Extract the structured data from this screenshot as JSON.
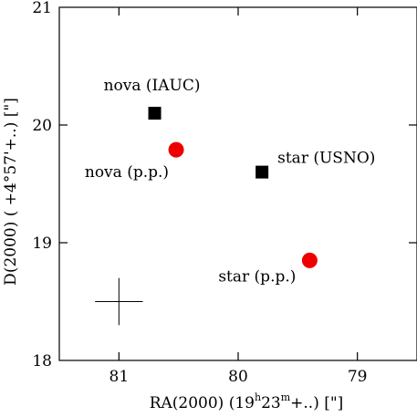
{
  "chart_data": {
    "type": "scatter",
    "xlabel": {
      "pre": "RA(2000) (19",
      "sup1": "h",
      "mid": "23",
      "sup2": "m",
      "post": "+..) [\"]"
    },
    "ylabel": "D(2000) ( +4°57'+..) [\"]",
    "xlim": [
      81.5,
      78.5
    ],
    "ylim": [
      18,
      21
    ],
    "x_reversed": true,
    "xticks": [
      81,
      80,
      79
    ],
    "xtick_labels": [
      "81",
      "80",
      "79"
    ],
    "yticks": [
      18,
      19,
      20,
      21
    ],
    "ytick_labels": [
      "18",
      "19",
      "20",
      "21"
    ],
    "grid": false,
    "colors": {
      "square": "#000000",
      "circle": "#ee0000"
    },
    "points": [
      {
        "label": "nova (IAUC)",
        "x": 80.7,
        "y": 20.1,
        "marker": "square"
      },
      {
        "label": "nova (p.p.)",
        "x": 80.52,
        "y": 19.79,
        "marker": "circle"
      },
      {
        "label": "star (USNO)",
        "x": 79.8,
        "y": 19.6,
        "marker": "square"
      },
      {
        "label": "star (p.p.)",
        "x": 79.4,
        "y": 18.85,
        "marker": "circle"
      }
    ],
    "error_cross": {
      "x": 81.0,
      "y": 18.5,
      "dx": 0.2,
      "dy": 0.2
    }
  }
}
